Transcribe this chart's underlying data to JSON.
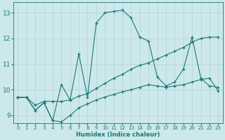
{
  "xlabel": "Humidex (Indice chaleur)",
  "bg_color": "#cce8ec",
  "line_color": "#1a7a6e",
  "grid_color": "#b8d4d8",
  "xlim": [
    -0.5,
    23.5
  ],
  "ylim": [
    8.7,
    13.4
  ],
  "yticks": [
    9,
    10,
    11,
    12,
    13
  ],
  "xticks": [
    0,
    1,
    2,
    3,
    4,
    5,
    6,
    7,
    8,
    9,
    10,
    11,
    12,
    13,
    14,
    15,
    16,
    17,
    18,
    19,
    20,
    21,
    22,
    23
  ],
  "lines": [
    {
      "x": [
        0,
        1,
        2,
        3,
        4,
        5,
        6,
        7,
        8,
        9,
        10,
        11,
        12,
        13,
        14,
        15,
        16,
        17,
        18,
        19,
        20,
        21,
        22,
        23
      ],
      "y": [
        9.7,
        9.7,
        9.2,
        9.5,
        8.8,
        10.2,
        9.6,
        11.4,
        9.7,
        12.6,
        13.0,
        13.05,
        13.1,
        12.8,
        12.05,
        11.9,
        10.5,
        10.15,
        10.3,
        10.8,
        12.05,
        10.45,
        10.15,
        10.1
      ]
    },
    {
      "x": [
        0,
        1,
        2,
        3,
        4,
        5,
        6,
        7,
        8,
        9,
        10,
        11,
        12,
        13,
        14,
        15,
        16,
        17,
        18,
        19,
        20,
        21,
        22,
        23
      ],
      "y": [
        9.7,
        9.7,
        9.4,
        9.55,
        9.55,
        9.55,
        9.6,
        9.75,
        9.85,
        10.05,
        10.25,
        10.45,
        10.6,
        10.8,
        10.95,
        11.05,
        11.2,
        11.35,
        11.5,
        11.65,
        11.85,
        12.0,
        12.05,
        12.05
      ]
    },
    {
      "x": [
        0,
        1,
        2,
        3,
        4,
        5,
        6,
        7,
        8,
        9,
        10,
        11,
        12,
        13,
        14,
        15,
        16,
        17,
        18,
        19,
        20,
        21,
        22,
        23
      ],
      "y": [
        9.7,
        9.7,
        9.2,
        9.5,
        8.8,
        8.75,
        9.0,
        9.3,
        9.45,
        9.6,
        9.72,
        9.82,
        9.92,
        10.0,
        10.1,
        10.2,
        10.15,
        10.1,
        10.15,
        10.2,
        10.3,
        10.4,
        10.45,
        9.95
      ]
    }
  ]
}
